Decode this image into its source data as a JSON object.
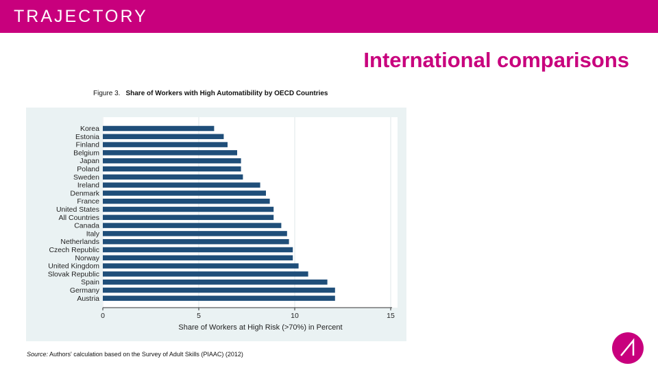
{
  "colors": {
    "brand": "#c8007d",
    "bar": "#1f4e79",
    "plot_bg": "#eaf2f3"
  },
  "header": {
    "brand_name": "TRAJECTORY"
  },
  "slide": {
    "title": "International comparisons"
  },
  "figure": {
    "number_label": "Figure 3.",
    "title": "Share of Workers with High Automatibility by OECD Countries"
  },
  "source": {
    "label": "Source:",
    "text": " Authors' calculation based on the Survey of Adult Skills (PIAAC) (2012)"
  },
  "logo": {
    "icon": "trajectory-logo-icon"
  },
  "chart_data": {
    "type": "bar",
    "orientation": "horizontal",
    "title": "Share of Workers with High Automatibility by OECD Countries",
    "xlabel": "Share of Workers at High Risk (>70%) in Percent",
    "ylabel": "",
    "xlim": [
      0,
      15
    ],
    "xticks": [
      0,
      5,
      10,
      15
    ],
    "grid": "vertical",
    "categories": [
      "Korea",
      "Estonia",
      "Finland",
      "Belgium",
      "Japan",
      "Poland",
      "Sweden",
      "Ireland",
      "Denmark",
      "France",
      "United States",
      "All Countries",
      "Canada",
      "Italy",
      "Netherlands",
      "Czech Republic",
      "Norway",
      "United Kingdom",
      "Slovak Republic",
      "Spain",
      "Germany",
      "Austria"
    ],
    "values": [
      5.8,
      6.3,
      6.5,
      7.0,
      7.2,
      7.2,
      7.3,
      8.2,
      8.5,
      8.7,
      8.9,
      8.9,
      9.3,
      9.6,
      9.7,
      9.9,
      9.9,
      10.2,
      10.7,
      11.7,
      12.1,
      12.1
    ]
  }
}
